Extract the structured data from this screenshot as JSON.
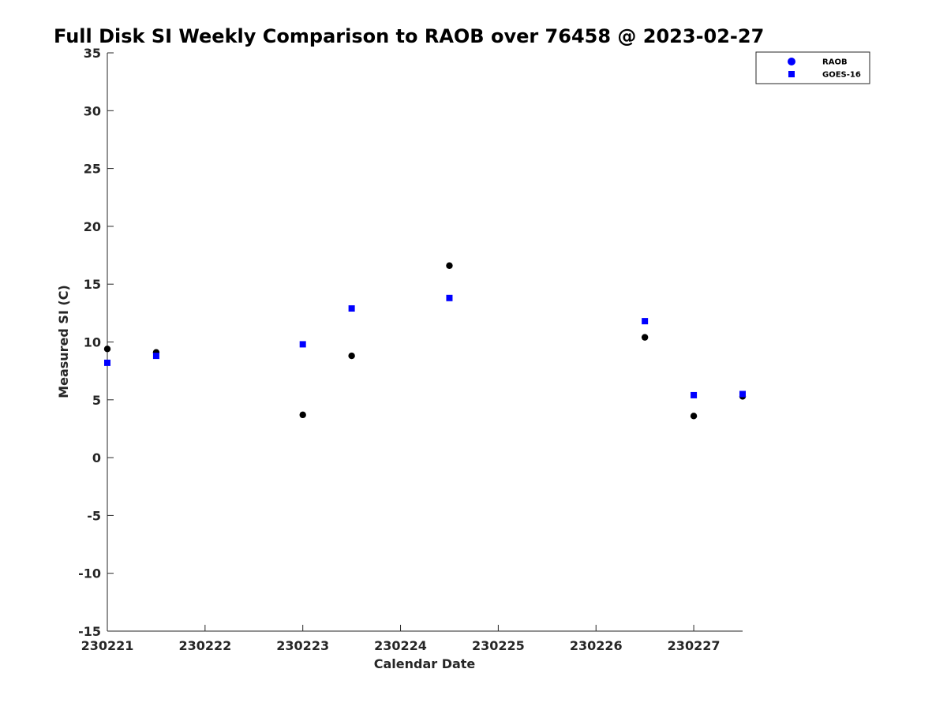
{
  "chart_data": {
    "type": "scatter",
    "title": "Full Disk SI Weekly Comparison to RAOB over 76458 @ 2023-02-27",
    "xlabel": "Calendar Date",
    "ylabel": "Measured SI (C)",
    "x_ticks": [
      "230221",
      "230222",
      "230223",
      "230224",
      "230225",
      "230226",
      "230227"
    ],
    "xlim": [
      "2023-02-21 00:00",
      "2023-02-27 12:00"
    ],
    "ylim": [
      -15,
      35
    ],
    "y_ticks": [
      -15,
      -10,
      -5,
      0,
      5,
      10,
      15,
      20,
      25,
      30,
      35
    ],
    "grid": false,
    "legend_position": "top-right",
    "series": [
      {
        "name": "RAOB",
        "marker": "circle",
        "color": "#000000",
        "legend_color": "#0000ff",
        "x": [
          "2023-02-21 00:00",
          "2023-02-21 12:00",
          "2023-02-23 00:00",
          "2023-02-23 12:00",
          "2023-02-24 12:00",
          "2023-02-26 12:00",
          "2023-02-27 00:00",
          "2023-02-27 12:00"
        ],
        "y": [
          9.4,
          9.1,
          3.7,
          8.8,
          16.6,
          10.4,
          3.6,
          5.3
        ]
      },
      {
        "name": "GOES-16",
        "marker": "square",
        "color": "#0000ff",
        "legend_color": "#0000ff",
        "x": [
          "2023-02-21 00:00",
          "2023-02-21 12:00",
          "2023-02-23 00:00",
          "2023-02-23 12:00",
          "2023-02-24 12:00",
          "2023-02-26 12:00",
          "2023-02-27 00:00",
          "2023-02-27 12:00"
        ],
        "y": [
          8.2,
          8.8,
          9.8,
          12.9,
          13.8,
          11.8,
          5.4,
          5.5
        ]
      }
    ]
  }
}
